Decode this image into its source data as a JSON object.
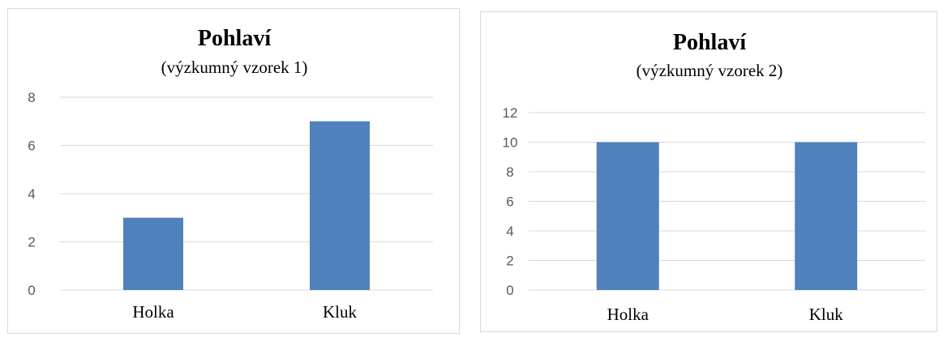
{
  "chart_data": [
    {
      "type": "bar",
      "title": "Pohlaví",
      "subtitle": "(výzkumný vzorek 1)",
      "categories": [
        "Holka",
        "Kluk"
      ],
      "values": [
        3,
        7
      ],
      "ylim": [
        0,
        8
      ],
      "yticks": [
        0,
        2,
        4,
        6,
        8
      ],
      "grid": true,
      "bar_color": "#4f81bd"
    },
    {
      "type": "bar",
      "title": "Pohlaví",
      "subtitle": "(výzkumný vzorek 2)",
      "categories": [
        "Holka",
        "Kluk"
      ],
      "values": [
        10,
        10
      ],
      "ylim": [
        0,
        12
      ],
      "yticks": [
        0,
        2,
        4,
        6,
        8,
        10,
        12
      ],
      "grid": true,
      "bar_color": "#4f81bd"
    }
  ]
}
